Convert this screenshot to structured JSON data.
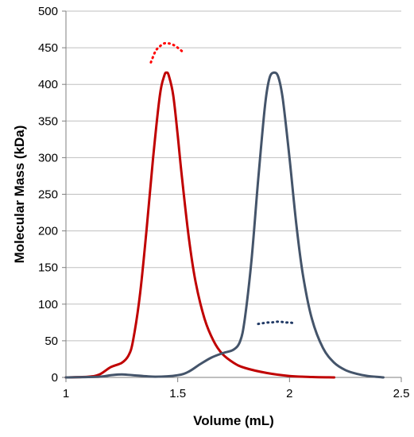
{
  "chart_data": {
    "type": "line",
    "title": "",
    "xlabel": "Volume (mL)",
    "ylabel": "Molecular Mass (kDa)",
    "xlim": [
      1,
      2.5
    ],
    "ylim": [
      0,
      500
    ],
    "x_ticks": [
      1,
      1.5,
      2,
      2.5
    ],
    "x_tick_labels": [
      "1",
      "1.5",
      "2",
      "2.5"
    ],
    "y_ticks": [
      0,
      50,
      100,
      150,
      200,
      250,
      300,
      350,
      400,
      450,
      500
    ],
    "y_tick_labels": [
      "0",
      "50",
      "100",
      "150",
      "200",
      "250",
      "300",
      "350",
      "400",
      "450",
      "500"
    ],
    "grid": "horizontal",
    "legend": "none",
    "series": [
      {
        "kind": "trace",
        "color": "#c00000",
        "x": [
          1.0,
          1.1,
          1.15,
          1.2,
          1.25,
          1.28,
          1.3,
          1.33,
          1.36,
          1.39,
          1.42,
          1.44,
          1.45,
          1.46,
          1.48,
          1.5,
          1.52,
          1.55,
          1.58,
          1.62,
          1.66,
          1.7,
          1.75,
          1.8,
          1.9,
          2.0,
          2.1,
          2.2
        ],
        "y": [
          0,
          1,
          4,
          14,
          20,
          30,
          50,
          110,
          200,
          300,
          385,
          412,
          416,
          412,
          385,
          330,
          270,
          190,
          130,
          80,
          50,
          32,
          20,
          13,
          6,
          2,
          0.5,
          0
        ]
      },
      {
        "kind": "trace",
        "color": "#44546a",
        "x": [
          1.0,
          1.15,
          1.2,
          1.25,
          1.3,
          1.4,
          1.5,
          1.55,
          1.6,
          1.65,
          1.7,
          1.75,
          1.78,
          1.8,
          1.83,
          1.86,
          1.89,
          1.91,
          1.93,
          1.95,
          1.97,
          2.0,
          2.03,
          2.06,
          2.1,
          2.15,
          2.2,
          2.25,
          2.3,
          2.35,
          2.4,
          2.42
        ],
        "y": [
          0,
          1,
          3,
          4,
          3,
          1,
          3,
          8,
          18,
          27,
          33,
          38,
          50,
          80,
          160,
          270,
          370,
          408,
          416,
          410,
          380,
          300,
          210,
          140,
          80,
          40,
          20,
          10,
          5,
          2,
          0.5,
          0
        ]
      },
      {
        "kind": "molecular-mass",
        "color": "#ff0000",
        "x": [
          1.38,
          1.4,
          1.42,
          1.44,
          1.46,
          1.48,
          1.5,
          1.52
        ],
        "y": [
          430,
          445,
          452,
          456,
          456,
          454,
          450,
          445
        ]
      },
      {
        "kind": "molecular-mass",
        "color": "#1f3864",
        "x": [
          1.86,
          1.88,
          1.9,
          1.92,
          1.94,
          1.96,
          1.98,
          2.0,
          2.02
        ],
        "y": [
          73,
          74,
          75,
          75,
          76,
          76,
          75,
          75,
          74
        ]
      }
    ]
  }
}
